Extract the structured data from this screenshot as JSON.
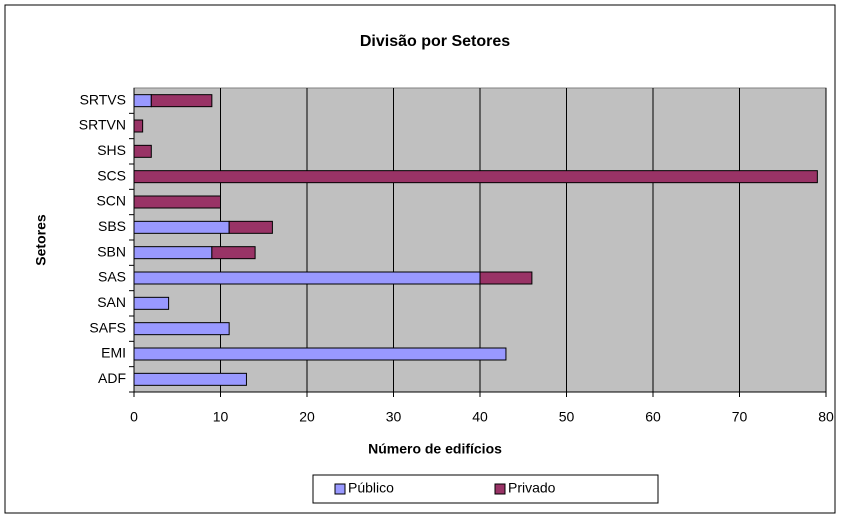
{
  "chart_data": {
    "type": "bar",
    "orientation": "horizontal",
    "stacked": true,
    "title": "Divisão por Setores",
    "x_label": "Número de edifícios",
    "y_label": "Setores",
    "categories": [
      "ADF",
      "EMI",
      "SAFS",
      "SAN",
      "SAS",
      "SBN",
      "SBS",
      "SCN",
      "SCS",
      "SHS",
      "SRTVN",
      "SRTVS"
    ],
    "series": [
      {
        "name": "Público",
        "color": "#9999ff",
        "values": [
          13,
          43,
          11,
          4,
          40,
          9,
          11,
          0,
          0,
          0,
          0,
          2
        ]
      },
      {
        "name": "Privado",
        "color": "#993366",
        "values": [
          0,
          0,
          0,
          0,
          6,
          5,
          5,
          10,
          79,
          2,
          1,
          7
        ]
      }
    ],
    "xlim": [
      0,
      80
    ],
    "xticks": [
      0,
      10,
      20,
      30,
      40,
      50,
      60,
      70,
      80
    ],
    "grid": true,
    "legend": "bottom",
    "plot_background": "#c0c0c0"
  }
}
